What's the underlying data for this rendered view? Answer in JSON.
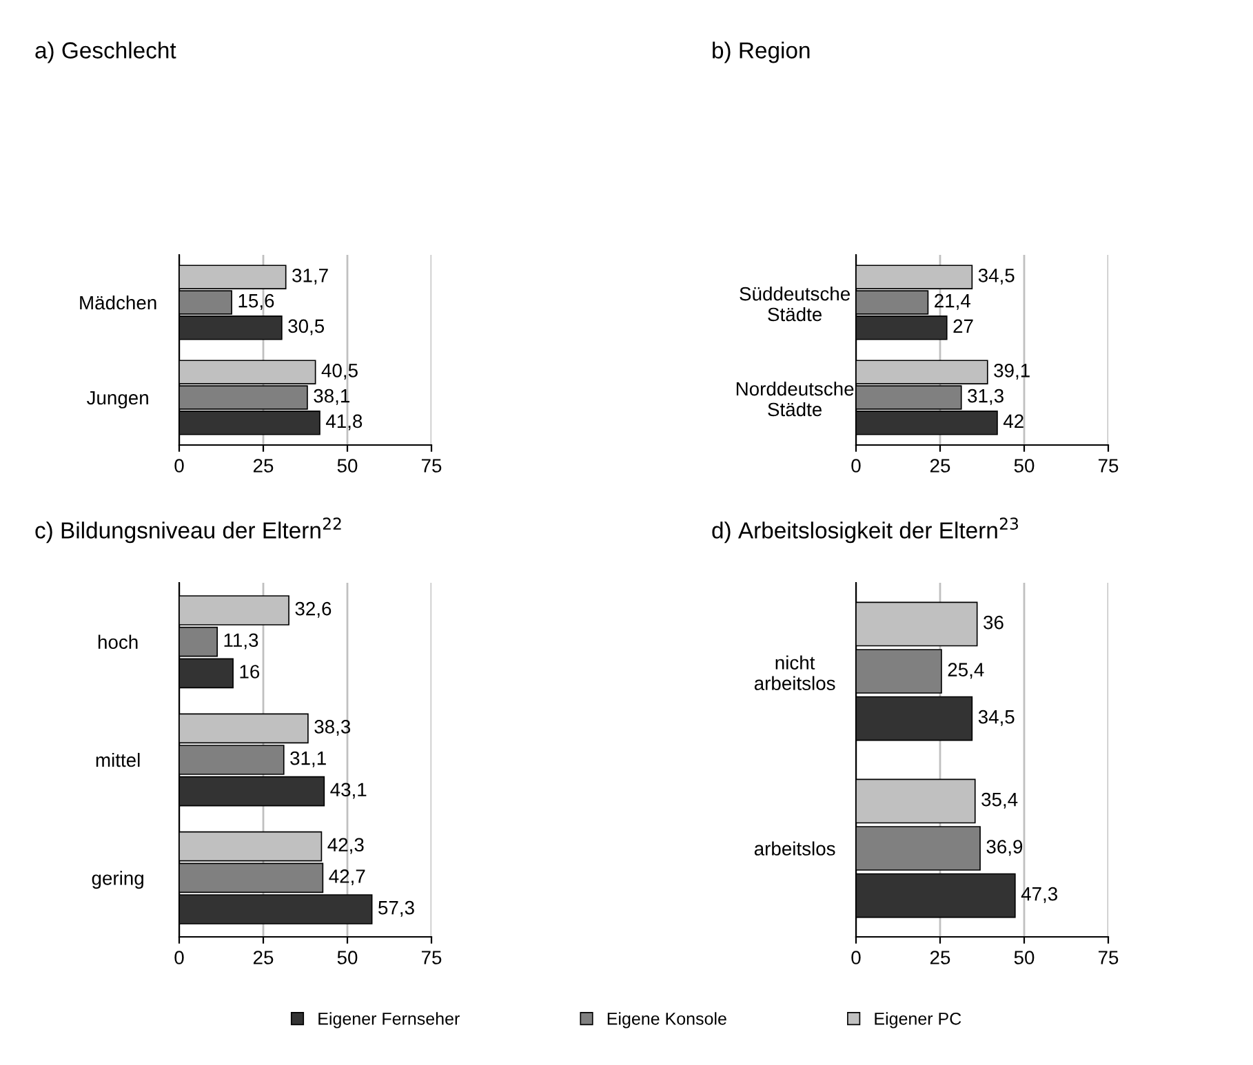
{
  "chart_data": [
    {
      "type": "bar",
      "orientation": "horizontal",
      "title": "a) Geschlecht",
      "categories": [
        "Mädchen",
        "Jungen"
      ],
      "series": [
        {
          "name": "Eigener Fernseher",
          "color": "#333333",
          "values": [
            30.5,
            41.8
          ],
          "value_labels": [
            "30,5",
            "41,8"
          ]
        },
        {
          "name": "Eigene Konsole",
          "color": "#808080",
          "values": [
            15.6,
            38.1
          ],
          "value_labels": [
            "15,6",
            "38,1"
          ]
        },
        {
          "name": "Eigener PC",
          "color": "#c0c0c0",
          "values": [
            31.7,
            40.5
          ],
          "value_labels": [
            "31,7",
            "40,5"
          ]
        }
      ],
      "xlim": [
        0,
        75
      ],
      "xticks": [
        0,
        25,
        50,
        75
      ],
      "grid": "x",
      "legend": "bottom"
    },
    {
      "type": "bar",
      "orientation": "horizontal",
      "title": "b) Region",
      "categories": [
        "Süddeutsche\nStädte",
        "Norddeutsche\nStädte"
      ],
      "series": [
        {
          "color": "#333333",
          "values": [
            27,
            42
          ],
          "value_labels": [
            "27",
            "42"
          ]
        },
        {
          "color": "#808080",
          "values": [
            21.4,
            31.3
          ],
          "value_labels": [
            "21,4",
            "31,3"
          ]
        },
        {
          "color": "#c0c0c0",
          "values": [
            34.5,
            39.1
          ],
          "value_labels": [
            "34,5",
            "39,1"
          ]
        }
      ],
      "xlim": [
        0,
        75
      ],
      "xticks": [
        0,
        25,
        50,
        75
      ],
      "grid": "x"
    },
    {
      "type": "bar",
      "orientation": "horizontal",
      "title": "c) Bildungsniveau der Eltern$^{22}$",
      "categories": [
        "hoch",
        "mittel",
        "gering"
      ],
      "series": [
        {
          "color": "#333333",
          "values": [
            16,
            43.1,
            57.3
          ],
          "value_labels": [
            "16",
            "43,1",
            "57,3"
          ]
        },
        {
          "color": "#808080",
          "values": [
            11.3,
            31.1,
            42.7
          ],
          "value_labels": [
            "11,3",
            "31,1",
            "42,7"
          ]
        },
        {
          "color": "#c0c0c0",
          "values": [
            32.6,
            38.3,
            42.3
          ],
          "value_labels": [
            "32,6",
            "38,3",
            "42,3"
          ]
        }
      ],
      "xlim": [
        0,
        75
      ],
      "xticks": [
        0,
        25,
        50,
        75
      ],
      "grid": "x"
    },
    {
      "type": "bar",
      "orientation": "horizontal",
      "title": "d) Arbeitslosigkeit der Eltern$^{23}$",
      "categories": [
        "nicht\narbeitslos",
        "arbeitslos"
      ],
      "series": [
        {
          "color": "#333333",
          "values": [
            34.5,
            47.3
          ],
          "value_labels": [
            "34,5",
            "47,3"
          ]
        },
        {
          "color": "#808080",
          "values": [
            25.4,
            36.9
          ],
          "value_labels": [
            "25,4",
            "36,9"
          ]
        },
        {
          "color": "#c0c0c0",
          "values": [
            36,
            35.4
          ],
          "value_labels": [
            "36",
            "35,4"
          ]
        }
      ],
      "xlim": [
        0,
        75
      ],
      "xticks": [
        0,
        25,
        50,
        75
      ],
      "grid": "x"
    }
  ]
}
